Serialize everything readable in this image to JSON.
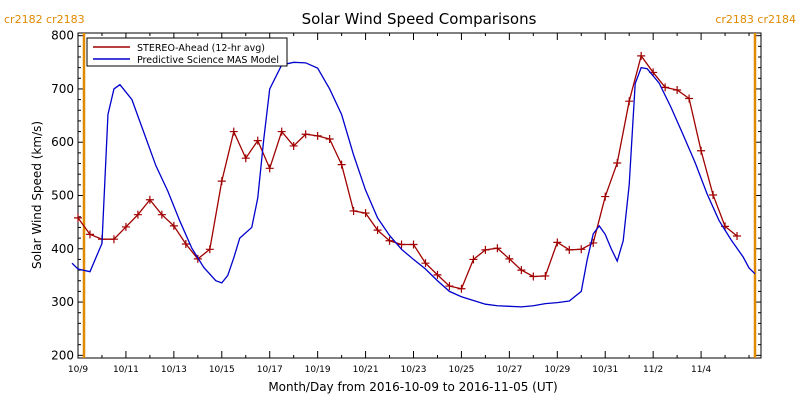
{
  "chart_data": {
    "type": "line",
    "title": "Solar Wind Speed Comparisons",
    "xlabel": "Month/Day from 2016-10-09 to 2016-11-05 (UT)",
    "ylabel": "Solar Wind Speed (km/s)",
    "xlim": [
      "2016-10-09",
      "2016-11-06T12:00"
    ],
    "ylim": [
      195,
      805
    ],
    "x_tick_labels": [
      "10/9",
      "10/11",
      "10/13",
      "10/15",
      "10/17",
      "10/19",
      "10/21",
      "10/23",
      "10/25",
      "10/27",
      "10/29",
      "10/31",
      "11/2",
      "11/4"
    ],
    "x_tick_dates": [
      "2016-10-09",
      "2016-10-11",
      "2016-10-13",
      "2016-10-15",
      "2016-10-17",
      "2016-10-19",
      "2016-10-21",
      "2016-10-23",
      "2016-10-25",
      "2016-10-27",
      "2016-10-29",
      "2016-10-31",
      "2016-11-02",
      "2016-11-04"
    ],
    "y_ticks": [
      200,
      300,
      400,
      500,
      600,
      700,
      800
    ],
    "grid": false,
    "legend_position": "top-left",
    "rotation_markers": [
      {
        "date": "2016-10-09T06:00",
        "label": "cr2182 cr2183",
        "label_side": "top-left",
        "color": "#e08a00"
      },
      {
        "date": "2016-11-06T06:00",
        "label": "cr2183 cr2184",
        "label_side": "top-right",
        "color": "#e08a00"
      }
    ],
    "series": [
      {
        "name": "STEREO-Ahead (12-hr avg)",
        "color": "#a00000",
        "marker": "plus",
        "points": [
          [
            "2016-10-09T00:00",
            458
          ],
          [
            "2016-10-09T12:00",
            427
          ],
          [
            "2016-10-10T00:00",
            418
          ],
          [
            "2016-10-10T12:00",
            418
          ],
          [
            "2016-10-11T00:00",
            441
          ],
          [
            "2016-10-11T12:00",
            464
          ],
          [
            "2016-10-12T00:00",
            492
          ],
          [
            "2016-10-12T12:00",
            464
          ],
          [
            "2016-10-13T00:00",
            443
          ],
          [
            "2016-10-13T12:00",
            409
          ],
          [
            "2016-10-14T00:00",
            381
          ],
          [
            "2016-10-14T12:00",
            399
          ],
          [
            "2016-10-15T00:00",
            527
          ],
          [
            "2016-10-15T12:00",
            620
          ],
          [
            "2016-10-16T00:00",
            570
          ],
          [
            "2016-10-16T12:00",
            603
          ],
          [
            "2016-10-17T00:00",
            551
          ],
          [
            "2016-10-17T12:00",
            620
          ],
          [
            "2016-10-18T00:00",
            593
          ],
          [
            "2016-10-18T12:00",
            615
          ],
          [
            "2016-10-19T00:00",
            612
          ],
          [
            "2016-10-19T12:00",
            606
          ],
          [
            "2016-10-20T00:00",
            558
          ],
          [
            "2016-10-20T12:00",
            471
          ],
          [
            "2016-10-21T00:00",
            467
          ],
          [
            "2016-10-21T12:00",
            435
          ],
          [
            "2016-10-22T00:00",
            415
          ],
          [
            "2016-10-22T12:00",
            408
          ],
          [
            "2016-10-23T00:00",
            408
          ],
          [
            "2016-10-23T12:00",
            373
          ],
          [
            "2016-10-24T00:00",
            351
          ],
          [
            "2016-10-24T12:00",
            330
          ],
          [
            "2016-10-25T00:00",
            325
          ],
          [
            "2016-10-25T12:00",
            380
          ],
          [
            "2016-10-26T00:00",
            398
          ],
          [
            "2016-10-26T12:00",
            401
          ],
          [
            "2016-10-27T00:00",
            381
          ],
          [
            "2016-10-27T12:00",
            360
          ],
          [
            "2016-10-28T00:00",
            348
          ],
          [
            "2016-10-28T12:00",
            349
          ],
          [
            "2016-10-29T00:00",
            412
          ],
          [
            "2016-10-29T12:00",
            398
          ],
          [
            "2016-10-30T00:00",
            399
          ],
          [
            "2016-10-30T12:00",
            411
          ],
          [
            "2016-10-31T00:00",
            498
          ],
          [
            "2016-10-31T12:00",
            561
          ],
          [
            "2016-11-01T00:00",
            677
          ],
          [
            "2016-11-01T12:00",
            762
          ],
          [
            "2016-11-02T00:00",
            731
          ],
          [
            "2016-11-02T12:00",
            703
          ],
          [
            "2016-11-03T00:00",
            698
          ],
          [
            "2016-11-03T12:00",
            682
          ],
          [
            "2016-11-04T00:00",
            584
          ],
          [
            "2016-11-04T12:00",
            501
          ],
          [
            "2016-11-05T00:00",
            442
          ],
          [
            "2016-11-05T12:00",
            424
          ]
        ]
      },
      {
        "name": "Predictive Science MAS Model",
        "color": "#0000cc",
        "marker": "none",
        "points": [
          [
            "2016-10-08T18:00",
            373
          ],
          [
            "2016-10-09T00:00",
            362
          ],
          [
            "2016-10-09T12:00",
            357
          ],
          [
            "2016-10-10T00:00",
            410
          ],
          [
            "2016-10-10T06:00",
            652
          ],
          [
            "2016-10-10T12:00",
            700
          ],
          [
            "2016-10-10T18:00",
            708
          ],
          [
            "2016-10-11T06:00",
            680
          ],
          [
            "2016-10-11T18:00",
            618
          ],
          [
            "2016-10-12T06:00",
            556
          ],
          [
            "2016-10-12T18:00",
            508
          ],
          [
            "2016-10-13T06:00",
            452
          ],
          [
            "2016-10-13T18:00",
            401
          ],
          [
            "2016-10-14T06:00",
            365
          ],
          [
            "2016-10-14T18:00",
            340
          ],
          [
            "2016-10-15T00:00",
            336
          ],
          [
            "2016-10-15T06:00",
            350
          ],
          [
            "2016-10-15T12:00",
            383
          ],
          [
            "2016-10-15T18:00",
            420
          ],
          [
            "2016-10-16T06:00",
            440
          ],
          [
            "2016-10-16T12:00",
            495
          ],
          [
            "2016-10-16T18:00",
            605
          ],
          [
            "2016-10-17T00:00",
            700
          ],
          [
            "2016-10-17T12:00",
            745
          ],
          [
            "2016-10-18T00:00",
            750
          ],
          [
            "2016-10-18T12:00",
            749
          ],
          [
            "2016-10-19T00:00",
            739
          ],
          [
            "2016-10-19T12:00",
            700
          ],
          [
            "2016-10-20T00:00",
            652
          ],
          [
            "2016-10-20T12:00",
            576
          ],
          [
            "2016-10-21T00:00",
            510
          ],
          [
            "2016-10-21T12:00",
            458
          ],
          [
            "2016-10-22T00:00",
            425
          ],
          [
            "2016-10-22T12:00",
            399
          ],
          [
            "2016-10-23T00:00",
            380
          ],
          [
            "2016-10-23T12:00",
            362
          ],
          [
            "2016-10-24T00:00",
            340
          ],
          [
            "2016-10-24T12:00",
            320
          ],
          [
            "2016-10-25T00:00",
            310
          ],
          [
            "2016-10-25T12:00",
            303
          ],
          [
            "2016-10-26T00:00",
            296
          ],
          [
            "2016-10-26T12:00",
            293
          ],
          [
            "2016-10-27T00:00",
            292
          ],
          [
            "2016-10-27T12:00",
            291
          ],
          [
            "2016-10-28T00:00",
            293
          ],
          [
            "2016-10-28T12:00",
            297
          ],
          [
            "2016-10-29T00:00",
            299
          ],
          [
            "2016-10-29T12:00",
            302
          ],
          [
            "2016-10-30T00:00",
            320
          ],
          [
            "2016-10-30T06:00",
            380
          ],
          [
            "2016-10-30T12:00",
            428
          ],
          [
            "2016-10-30T18:00",
            443
          ],
          [
            "2016-10-31T00:00",
            427
          ],
          [
            "2016-10-31T06:00",
            400
          ],
          [
            "2016-10-31T12:00",
            377
          ],
          [
            "2016-10-31T18:00",
            415
          ],
          [
            "2016-11-01T00:00",
            520
          ],
          [
            "2016-11-01T06:00",
            710
          ],
          [
            "2016-11-01T12:00",
            740
          ],
          [
            "2016-11-01T18:00",
            738
          ],
          [
            "2016-11-02T06:00",
            711
          ],
          [
            "2016-11-02T18:00",
            665
          ],
          [
            "2016-11-03T06:00",
            614
          ],
          [
            "2016-11-03T18:00",
            562
          ],
          [
            "2016-11-04T06:00",
            503
          ],
          [
            "2016-11-04T18:00",
            453
          ],
          [
            "2016-11-05T06:00",
            417
          ],
          [
            "2016-11-05T18:00",
            385
          ],
          [
            "2016-11-06T00:00",
            364
          ],
          [
            "2016-11-06T06:00",
            353
          ]
        ]
      }
    ]
  }
}
